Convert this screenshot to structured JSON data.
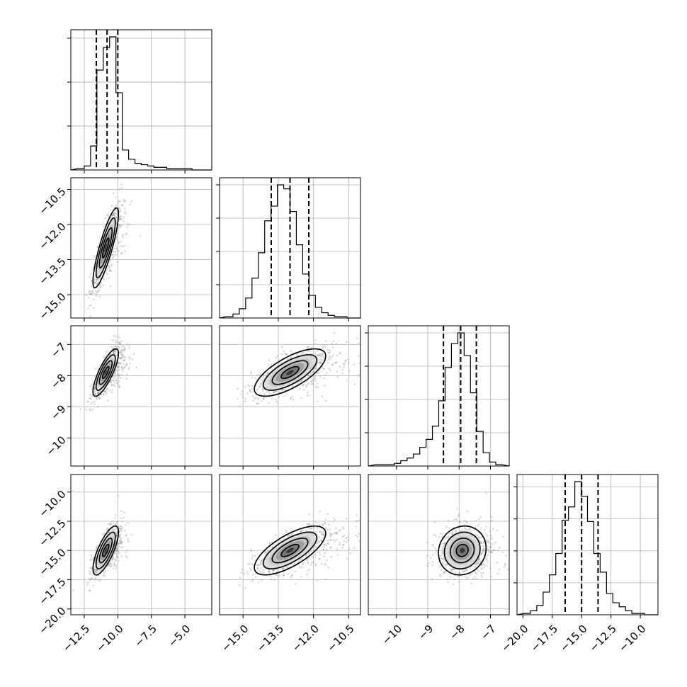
{
  "chart_data": {
    "type": "corner",
    "grid": true,
    "parameters": [
      {
        "range": [
          -13.5,
          -3.0
        ],
        "ticks": [
          -12.5,
          -10.0,
          -7.5,
          -5.0
        ],
        "tick_labels": [
          "−12.5",
          "−10.0",
          "−7.5",
          "−5.0"
        ],
        "quantiles": [
          -11.6,
          -10.8,
          -10.0
        ],
        "hist_counts": [
          1,
          3,
          18,
          75,
          92,
          100,
          58,
          15,
          8,
          5,
          4,
          3,
          2,
          2,
          1,
          1,
          1,
          1,
          0,
          0
        ],
        "hist_yticks_frac": [
          0.33,
          0.66,
          0.99
        ]
      },
      {
        "range": [
          -16.0,
          -10.0
        ],
        "ticks": [
          -15.0,
          -13.5,
          -12.0,
          -10.5
        ],
        "tick_labels": [
          "−15.0",
          "−13.5",
          "−12.0",
          "−10.5"
        ],
        "quantiles": [
          -13.8,
          -13.0,
          -12.2
        ],
        "hist_counts": [
          1,
          3,
          7,
          15,
          30,
          49,
          73,
          84,
          100,
          97,
          80,
          55,
          33,
          17,
          8,
          4,
          2,
          1,
          1,
          0
        ],
        "hist_yticks_frac": [
          0.25,
          0.5,
          0.75,
          1.0
        ]
      },
      {
        "range": [
          -10.9,
          -6.4
        ],
        "ticks": [
          -10,
          -9,
          -8,
          -7
        ],
        "tick_labels": [
          "−10",
          "−9",
          "−8",
          "−7"
        ],
        "quantiles": [
          -8.5,
          -7.95,
          -7.45
        ],
        "hist_counts": [
          1,
          1,
          1,
          2,
          4,
          6,
          9,
          14,
          20,
          30,
          49,
          74,
          92,
          100,
          83,
          55,
          26,
          10,
          3,
          1
        ],
        "hist_yticks_frac": [
          0.25,
          0.5,
          0.75,
          1.0
        ]
      },
      {
        "range": [
          -20.5,
          -8.5
        ],
        "ticks": [
          -20.0,
          -17.5,
          -15.0,
          -12.5,
          -10.0
        ],
        "tick_labels": [
          "−20.0",
          "−17.5",
          "−15.0",
          "−12.5",
          "−10.0"
        ],
        "quantiles": [
          -16.4,
          -15.0,
          -13.6
        ],
        "hist_counts": [
          1,
          3,
          7,
          17,
          30,
          46,
          71,
          81,
          100,
          89,
          70,
          46,
          32,
          16,
          9,
          6,
          3,
          1,
          1,
          0
        ],
        "hist_yticks_frac": [
          0.24,
          0.48,
          0.72,
          0.96
        ]
      }
    ],
    "pairs": [
      {
        "x": 0,
        "y": 1,
        "center": [
          -10.9,
          -13.0
        ],
        "sigma": [
          0.5,
          0.9
        ],
        "rho": 0.85
      },
      {
        "x": 0,
        "y": 2,
        "center": [
          -10.9,
          -7.9
        ],
        "sigma": [
          0.5,
          0.4
        ],
        "rho": 0.8
      },
      {
        "x": 1,
        "y": 2,
        "center": [
          -13.0,
          -7.9
        ],
        "sigma": [
          0.8,
          0.4
        ],
        "rho": 0.7
      },
      {
        "x": 0,
        "y": 3,
        "center": [
          -10.9,
          -15.0
        ],
        "sigma": [
          0.5,
          1.1
        ],
        "rho": 0.75
      },
      {
        "x": 1,
        "y": 3,
        "center": [
          -13.0,
          -15.0
        ],
        "sigma": [
          0.8,
          1.1
        ],
        "rho": 0.7
      },
      {
        "x": 2,
        "y": 3,
        "center": [
          -7.9,
          -15.0
        ],
        "sigma": [
          0.4,
          1.1
        ],
        "rho": 0.1
      }
    ],
    "contour_levels_sigma": [
      0.5,
      1.0,
      1.5,
      2.0
    ]
  }
}
